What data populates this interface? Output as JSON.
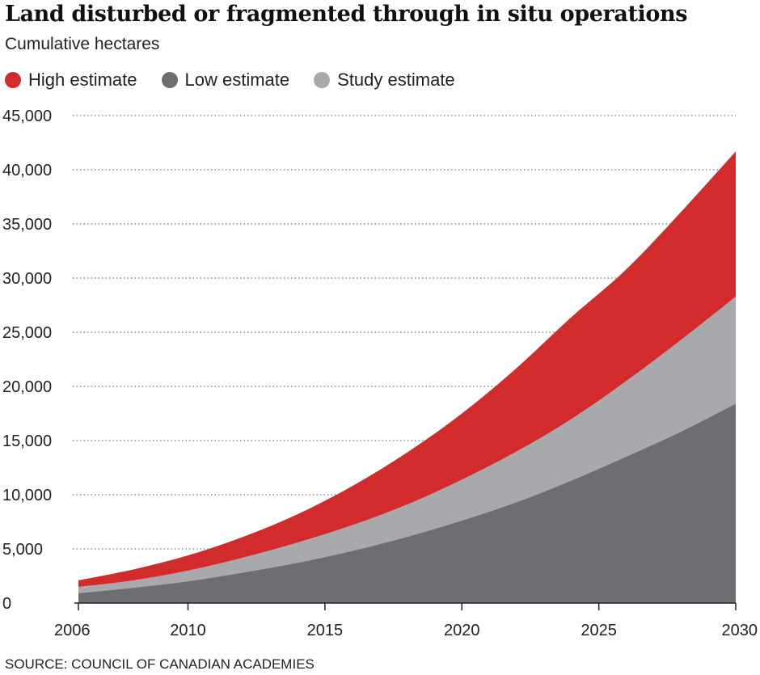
{
  "chart_data": {
    "type": "area",
    "title": "Land disturbed or fragmented through in situ operations",
    "subtitle": "Cumulative hectares",
    "source": "SOURCE: COUNCIL OF CANADIAN ACADEMIES",
    "xlabel": "",
    "ylabel": "",
    "x": [
      2006,
      2008,
      2010,
      2012,
      2014,
      2016,
      2018,
      2020,
      2022,
      2024,
      2026,
      2028,
      2030
    ],
    "x_ticks": [
      "2006",
      "2010",
      "2015",
      "2020",
      "2025",
      "2030"
    ],
    "x_tick_values": [
      2006,
      2010,
      2015,
      2020,
      2025,
      2030
    ],
    "y_ticks": [
      "0",
      "5,000",
      "10,000",
      "15,000",
      "20,000",
      "25,000",
      "30,000",
      "35,000",
      "40,000",
      "45,000"
    ],
    "y_tick_values": [
      0,
      5000,
      10000,
      15000,
      20000,
      25000,
      30000,
      35000,
      40000,
      45000
    ],
    "ylim": [
      0,
      45000
    ],
    "xlim": [
      2006,
      2030
    ],
    "grid": "horizontal dotted",
    "legend_position": "top-left",
    "series": [
      {
        "name": "High estimate",
        "color": "#d22b2b",
        "values": [
          2100,
          3100,
          4400,
          6100,
          8200,
          10800,
          13900,
          17500,
          21700,
          26400,
          30800,
          36100,
          41700
        ]
      },
      {
        "name": "Low estimate",
        "color": "#6d6e72",
        "values": [
          900,
          1400,
          2000,
          2800,
          3700,
          4800,
          6100,
          7600,
          9300,
          11300,
          13500,
          15800,
          18400
        ]
      },
      {
        "name": "Study estimate",
        "color": "#a8a9ad",
        "values": [
          1500,
          2100,
          3000,
          4200,
          5600,
          7200,
          9100,
          11400,
          14000,
          17000,
          20500,
          24300,
          28300
        ]
      }
    ]
  }
}
